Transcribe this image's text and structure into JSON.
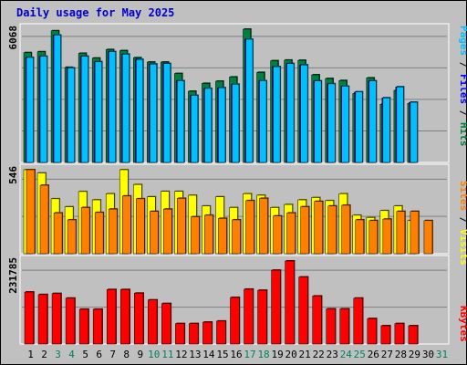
{
  "title": "Daily usage for May 2025",
  "chart_data": [
    {
      "type": "bar",
      "panel": "pages-files-hits",
      "max_label": "6068",
      "categories": [
        "1",
        "2",
        "3",
        "4",
        "5",
        "6",
        "7",
        "8",
        "9",
        "10",
        "11",
        "12",
        "13",
        "14",
        "15",
        "16",
        "17",
        "18",
        "19",
        "20",
        "21",
        "22",
        "23",
        "24",
        "25",
        "26",
        "27",
        "28",
        "29",
        "30",
        "31"
      ],
      "ylim": [
        0,
        6068
      ],
      "series": [
        {
          "name": "Hits",
          "color": "#008040",
          "values": [
            5000,
            5040,
            5995,
            4330,
            4970,
            4750,
            5140,
            5090,
            4770,
            4570,
            4570,
            4050,
            3240,
            3600,
            3700,
            3890,
            6068,
            4100,
            4630,
            4660,
            4650,
            3990,
            3820,
            3730,
            3140,
            3850,
            2650,
            3280,
            2690,
            null,
            null
          ]
        },
        {
          "name": "Files",
          "color": "#0000ff",
          "values": [
            4780,
            4830,
            5800,
            4300,
            4830,
            4580,
            5040,
            4930,
            4690,
            4480,
            4500,
            3720,
            3050,
            3370,
            3400,
            3560,
            5610,
            3720,
            4360,
            4500,
            4440,
            3710,
            3580,
            3470,
            3210,
            3710,
            2940,
            3440,
            2740,
            null,
            null
          ]
        },
        {
          "name": "Pages",
          "color": "#00c0ff",
          "values": [
            4780,
            4830,
            5800,
            4300,
            4830,
            4580,
            5040,
            4930,
            4690,
            4480,
            4500,
            3720,
            3050,
            3370,
            3400,
            3560,
            5610,
            3720,
            4360,
            4500,
            4440,
            3710,
            3580,
            3470,
            3210,
            3710,
            2940,
            3440,
            2740,
            null,
            null
          ]
        }
      ]
    },
    {
      "type": "bar",
      "panel": "sites-visits",
      "max_label": "546",
      "categories": [
        "1",
        "2",
        "3",
        "4",
        "5",
        "6",
        "7",
        "8",
        "9",
        "10",
        "11",
        "12",
        "13",
        "14",
        "15",
        "16",
        "17",
        "18",
        "19",
        "20",
        "21",
        "22",
        "23",
        "24",
        "25",
        "26",
        "27",
        "28",
        "29",
        "30",
        "31"
      ],
      "ylim": [
        0,
        546
      ],
      "series": [
        {
          "name": "Visits",
          "color": "#ffff00",
          "values": [
            546,
            525,
            357,
            305,
            404,
            350,
            390,
            546,
            450,
            370,
            405,
            405,
            380,
            310,
            370,
            300,
            390,
            380,
            300,
            320,
            350,
            365,
            345,
            390,
            250,
            235,
            280,
            310,
            215,
            null,
            null
          ]
        },
        {
          "name": "Sites",
          "color": "#ff8000",
          "values": [
            546,
            445,
            265,
            220,
            300,
            268,
            290,
            375,
            357,
            275,
            290,
            360,
            240,
            250,
            230,
            220,
            345,
            360,
            245,
            265,
            305,
            340,
            310,
            315,
            220,
            215,
            225,
            275,
            275,
            215,
            null
          ]
        }
      ]
    },
    {
      "type": "bar",
      "panel": "kbytes",
      "max_label": "231785",
      "categories": [
        "1",
        "2",
        "3",
        "4",
        "5",
        "6",
        "7",
        "8",
        "9",
        "10",
        "11",
        "12",
        "13",
        "14",
        "15",
        "16",
        "17",
        "18",
        "19",
        "20",
        "21",
        "22",
        "23",
        "24",
        "25",
        "26",
        "27",
        "28",
        "29",
        "30",
        "31"
      ],
      "ylim": [
        0,
        231785
      ],
      "series": [
        {
          "name": "KBytes",
          "color": "#ff0000",
          "values": [
            145000,
            138000,
            141000,
            128000,
            97000,
            97000,
            152000,
            152000,
            142000,
            123000,
            113000,
            57000,
            57000,
            61000,
            64000,
            130000,
            153000,
            150000,
            206000,
            231785,
            187000,
            134000,
            98000,
            98000,
            128000,
            71000,
            51000,
            57000,
            51000,
            null,
            null
          ]
        }
      ]
    }
  ],
  "x_labels": [
    "1",
    "2",
    "3",
    "4",
    "5",
    "6",
    "7",
    "8",
    "9",
    "10",
    "11",
    "12",
    "13",
    "14",
    "15",
    "16",
    "17",
    "18",
    "19",
    "20",
    "21",
    "22",
    "23",
    "24",
    "25",
    "26",
    "27",
    "28",
    "29",
    "30",
    "31"
  ],
  "weekend_days": [
    "3",
    "4",
    "10",
    "11",
    "17",
    "18",
    "24",
    "25",
    "31"
  ],
  "colors": {
    "title": "#0000cc",
    "weekday_label": "#000000",
    "weekend_label": "#00805f",
    "panel_bg": "#c0c0c0",
    "grid": "#808080"
  }
}
